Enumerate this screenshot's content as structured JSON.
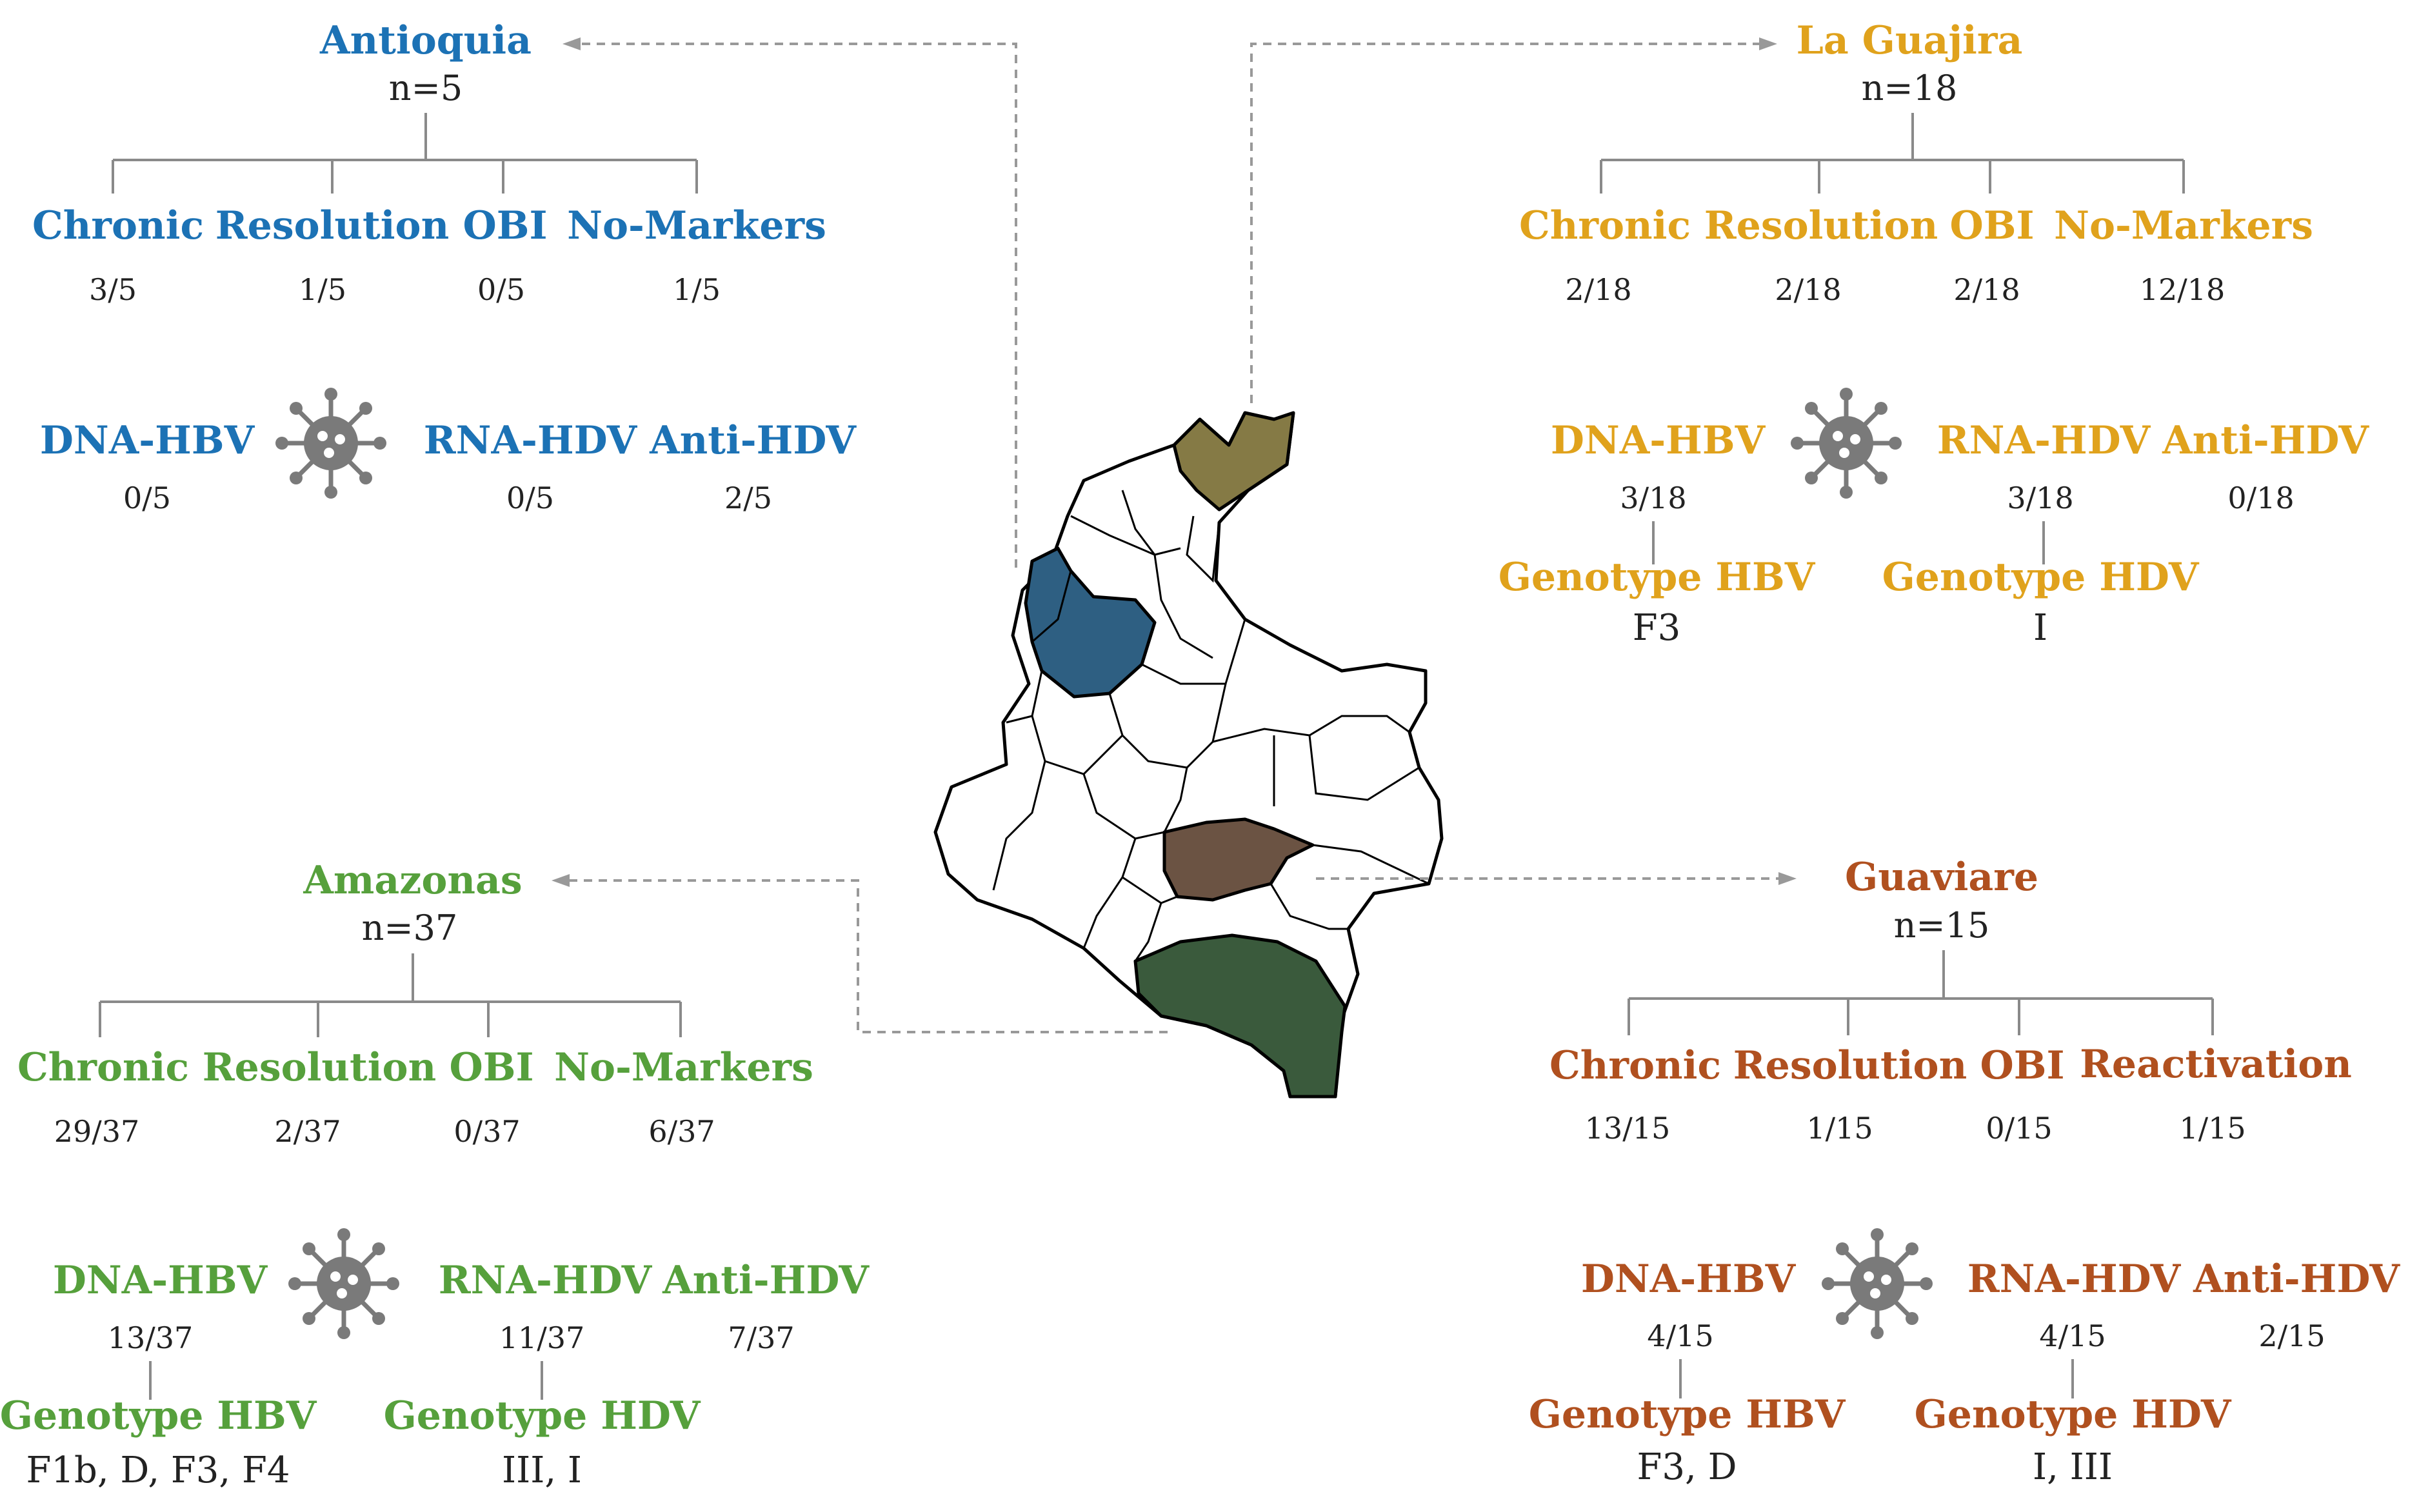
{
  "panels": {
    "antioquia": {
      "color": "#1c72b5",
      "name": "Antioquia",
      "n": "n=5",
      "categories": [
        "Chronic",
        "Resolution",
        "OBI",
        "No-Markers"
      ],
      "counts": [
        "3/5",
        "1/5",
        "0/5",
        "1/5"
      ],
      "dna_label": "DNA-HBV",
      "dna_value": "0/5",
      "rna_label": "RNA-HDV",
      "rna_value": "0/5",
      "anti_label": "Anti-HDV",
      "anti_value": "2/5"
    },
    "la_guajira": {
      "color": "#e0a21c",
      "name": "La Guajira",
      "n": "n=18",
      "categories": [
        "Chronic",
        "Resolution",
        "OBI",
        "No-Markers"
      ],
      "counts": [
        "2/18",
        "2/18",
        "2/18",
        "12/18"
      ],
      "dna_label": "DNA-HBV",
      "dna_value": "3/18",
      "rna_label": "RNA-HDV",
      "rna_value": "3/18",
      "anti_label": "Anti-HDV",
      "anti_value": "0/18",
      "genotype_hbv_label": "Genotype HBV",
      "genotype_hbv_value": "F3",
      "genotype_hdv_label": "Genotype HDV",
      "genotype_hdv_value": "I"
    },
    "amazonas": {
      "color": "#56a03c",
      "name": "Amazonas",
      "n": "n=37",
      "categories": [
        "Chronic",
        "Resolution",
        "OBI",
        "No-Markers"
      ],
      "counts": [
        "29/37",
        "2/37",
        "0/37",
        "6/37"
      ],
      "dna_label": "DNA-HBV",
      "dna_value": "13/37",
      "rna_label": "RNA-HDV",
      "rna_value": "11/37",
      "anti_label": "Anti-HDV",
      "anti_value": "7/37",
      "genotype_hbv_label": "Genotype HBV",
      "genotype_hbv_value": "F1b, D, F3, F4",
      "genotype_hdv_label": "Genotype HDV",
      "genotype_hdv_value": "III, I"
    },
    "guaviare": {
      "color": "#b0501f",
      "name": "Guaviare",
      "n": "n=15",
      "categories": [
        "Chronic",
        "Resolution",
        "OBI",
        "Reactivation"
      ],
      "counts": [
        "13/15",
        "1/15",
        "0/15",
        "1/15"
      ],
      "dna_label": "DNA-HBV",
      "dna_value": "4/15",
      "rna_label": "RNA-HDV",
      "rna_value": "4/15",
      "anti_label": "Anti-HDV",
      "anti_value": "2/15",
      "genotype_hbv_label": "Genotype HBV",
      "genotype_hbv_value": "F3, D",
      "genotype_hdv_label": "Genotype HDV",
      "genotype_hdv_value": "I, III"
    }
  },
  "map": {
    "icon": "colombia-map",
    "fill_antioquia": "#2e5f82",
    "fill_la_guajira": "#857a45",
    "fill_guaviare": "#6b5343",
    "fill_amazonas": "#3a5a3c",
    "fill_other": "#ffffff"
  },
  "virus_icon": {
    "icon": "virus-icon",
    "color": "#7a7a7a"
  }
}
